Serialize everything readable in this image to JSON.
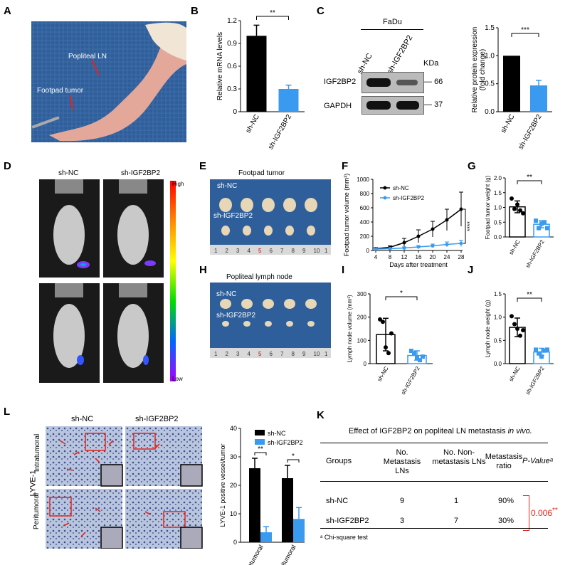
{
  "panel_letters": [
    "A",
    "B",
    "C",
    "D",
    "E",
    "F",
    "G",
    "H",
    "I",
    "J",
    "L",
    "K"
  ],
  "colors": {
    "nc": "#000000",
    "ig": "#3a9af0",
    "photo_bg": "#2f5f9a",
    "mouse_bg": "#1a1a1a",
    "red": "#e8231b",
    "tissue": "#e8d7b6"
  },
  "panelA": {
    "label_ln": "Popliteal LN",
    "label_tumor": "Footpad tumor"
  },
  "panelC": {
    "cell": "FaDu",
    "lanes": [
      "sh-NC",
      "sh-IGF2BP2"
    ],
    "kda": "KDa",
    "rows": [
      {
        "name": "IGF2BP2",
        "mw": "66"
      },
      {
        "name": "GAPDH",
        "mw": "37"
      }
    ]
  },
  "panelD": {
    "cols": [
      "sh-NC",
      "sh-IGF2BP2"
    ],
    "scale_high": "High",
    "scale_low": "Low"
  },
  "panelE": {
    "title": "Footpad tumor",
    "row1": "sh-NC",
    "row2": "sh-IGF2BP2",
    "ruler": [
      "1",
      "2",
      "3",
      "4",
      "5",
      "6",
      "7",
      "8",
      "9",
      "10",
      "1"
    ]
  },
  "panelH": {
    "title": "Popliteal lymph node",
    "row1": "sh-NC",
    "row2": "sh-IGF2BP2",
    "ruler": [
      "1",
      "2",
      "3",
      "4",
      "5",
      "6",
      "7",
      "8",
      "9",
      "10",
      "1"
    ]
  },
  "panelL": {
    "cols": [
      "sh-NC",
      "sh-IGF2BP2"
    ],
    "marker": "LYVE-1",
    "rows": [
      "Intratumoral",
      "Peritumoral"
    ]
  },
  "chart_data": [
    {
      "panel": "B",
      "type": "bar",
      "categories": [
        "sh-NC",
        "sh-IGF2BP2"
      ],
      "values": [
        1.0,
        0.3
      ],
      "errors": [
        0.14,
        0.05
      ],
      "ylabel": "Relative mRNA levels",
      "ylim": [
        0,
        1.2
      ],
      "yticks": [
        "0",
        "0.3",
        "0.6",
        "0.9",
        "1.2"
      ],
      "sig": "**"
    },
    {
      "panel": "C",
      "type": "bar",
      "categories": [
        "sh-NC",
        "sh-IGF2BP2"
      ],
      "values": [
        1.0,
        0.47
      ],
      "errors": [
        0,
        0.09
      ],
      "ylabel": "Relative protein expression",
      "ylabel2": "(fold change)",
      "ylim": [
        0,
        1.5
      ],
      "yticks": [
        "0.0",
        "0.5",
        "1.0",
        "1.5"
      ],
      "sig": "***"
    },
    {
      "panel": "F",
      "type": "line",
      "x": [
        4,
        8,
        12,
        16,
        20,
        24,
        28
      ],
      "xticks": [
        "4",
        "8",
        "12",
        "16",
        "20",
        "24",
        "28"
      ],
      "xlabel": "Days after treatment",
      "ylabel": "Footpad tumor volume (mm³)",
      "ylim": [
        0,
        1000
      ],
      "yticks": [
        "0",
        "200",
        "400",
        "600",
        "800",
        "1000"
      ],
      "sig": "****",
      "series": [
        {
          "name": "sh-NC",
          "values": [
            25,
            45,
            110,
            200,
            300,
            430,
            580
          ],
          "errors": [
            15,
            20,
            60,
            90,
            110,
            150,
            240
          ]
        },
        {
          "name": "sh-IGF2BP2",
          "values": [
            20,
            25,
            35,
            50,
            65,
            85,
            100
          ],
          "errors": [
            10,
            10,
            15,
            20,
            25,
            35,
            45
          ]
        }
      ]
    },
    {
      "panel": "G",
      "type": "bar",
      "categories": [
        "sh-NC",
        "sh-IGF2BP2"
      ],
      "values": [
        1.02,
        0.43
      ],
      "errors": [
        0.2,
        0.12
      ],
      "points": [
        [
          1.3,
          0.95,
          1.1,
          0.9,
          0.8
        ],
        [
          0.55,
          0.3,
          0.45,
          0.5,
          0.3
        ]
      ],
      "ylabel": "Footpad tumor weight (g)",
      "ylim": [
        0,
        2.0
      ],
      "yticks": [
        "0.0",
        "0.5",
        "1.0",
        "1.5",
        "2.0"
      ],
      "sig": "**"
    },
    {
      "panel": "I",
      "type": "bar",
      "categories": [
        "sh-NC",
        "sh-IGF2BP2"
      ],
      "values": [
        125,
        35
      ],
      "errors": [
        70,
        20
      ],
      "points": [
        [
          190,
          180,
          70,
          45,
          130
        ],
        [
          55,
          45,
          25,
          15,
          30
        ]
      ],
      "ylabel": "Lymph node volume (mm³)",
      "ylim": [
        0,
        300
      ],
      "yticks": [
        "0",
        "100",
        "200",
        "300"
      ],
      "sig": "*"
    },
    {
      "panel": "J",
      "type": "bar",
      "categories": [
        "sh-NC",
        "sh-IGF2BP2"
      ],
      "values": [
        0.78,
        0.25
      ],
      "errors": [
        0.2,
        0.08
      ],
      "points": [
        [
          1.02,
          0.85,
          0.75,
          0.6,
          0.72
        ],
        [
          0.3,
          0.22,
          0.15,
          0.28,
          0.3
        ]
      ],
      "ylabel": "Lymph node weight (g)",
      "ylim": [
        0,
        1.5
      ],
      "yticks": [
        "0.0",
        "0.5",
        "1.0",
        "1.5"
      ],
      "sig": "**"
    },
    {
      "panel": "L",
      "type": "bar",
      "categories": [
        "Intratumoral",
        "Peritumoral"
      ],
      "series": [
        {
          "name": "sh-NC",
          "values": [
            26,
            22.5
          ],
          "errors": [
            3.5,
            4.5
          ]
        },
        {
          "name": "sh-IGF2BP2",
          "values": [
            3.5,
            8.2
          ],
          "errors": [
            2,
            4
          ]
        }
      ],
      "ylabel": "LYVE-1 positive vessel/tumor",
      "ylim": [
        0,
        40
      ],
      "yticks": [
        "0",
        "10",
        "20",
        "30",
        "40"
      ],
      "sigs": [
        "**",
        "*"
      ]
    },
    {
      "panel": "K",
      "type": "table",
      "title": "Effect of IGF2BP2 on popliteal LN metastasis",
      "title_italic": "in vivo.",
      "headers": [
        "Groups",
        "No. Metastasis LNs",
        "No. Non-metastasis LNs",
        "Metastasis ratio",
        "P-Valueᵃ"
      ],
      "rows": [
        [
          "sh-NC",
          "9",
          "1",
          "90%"
        ],
        [
          "sh-IGF2BP2",
          "3",
          "7",
          "30%"
        ]
      ],
      "pvalue": "0.006",
      "pvalue_sig": "**",
      "footnote": "ᵃ Chi-square test"
    }
  ]
}
